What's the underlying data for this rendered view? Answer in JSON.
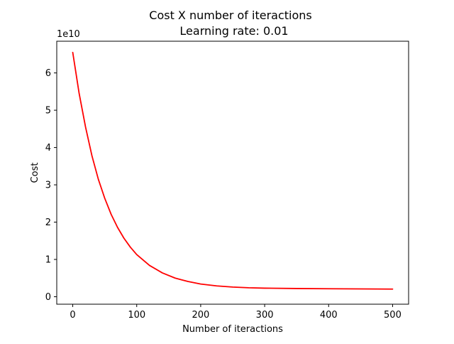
{
  "chart_data": {
    "type": "line",
    "title": "Cost X number of iteractions",
    "subtitle": "Learning rate: 0.01",
    "xlabel": "Number of iteractions",
    "ylabel": "Cost",
    "y_offset_label": "1e10",
    "xlim": [
      -25,
      525
    ],
    "ylim": [
      -0.2,
      6.85
    ],
    "y_scale_factor": 10000000000,
    "x_ticks": [
      0,
      100,
      200,
      300,
      400,
      500
    ],
    "x_tick_labels": [
      "0",
      "100",
      "200",
      "300",
      "400",
      "500"
    ],
    "y_ticks": [
      0,
      1,
      2,
      3,
      4,
      5,
      6
    ],
    "y_tick_labels": [
      "0",
      "1",
      "2",
      "3",
      "4",
      "5",
      "6"
    ],
    "grid": false,
    "legend": "none",
    "series": [
      {
        "color": "#ff0000",
        "x": [
          0,
          10,
          20,
          30,
          40,
          50,
          60,
          70,
          80,
          90,
          100,
          120,
          140,
          160,
          180,
          200,
          225,
          250,
          275,
          300,
          350,
          400,
          450,
          500
        ],
        "y": [
          6.55,
          5.45,
          4.55,
          3.78,
          3.15,
          2.64,
          2.21,
          1.86,
          1.57,
          1.33,
          1.13,
          0.84,
          0.64,
          0.5,
          0.41,
          0.34,
          0.29,
          0.26,
          0.24,
          0.23,
          0.22,
          0.215,
          0.21,
          0.205
        ]
      }
    ]
  }
}
